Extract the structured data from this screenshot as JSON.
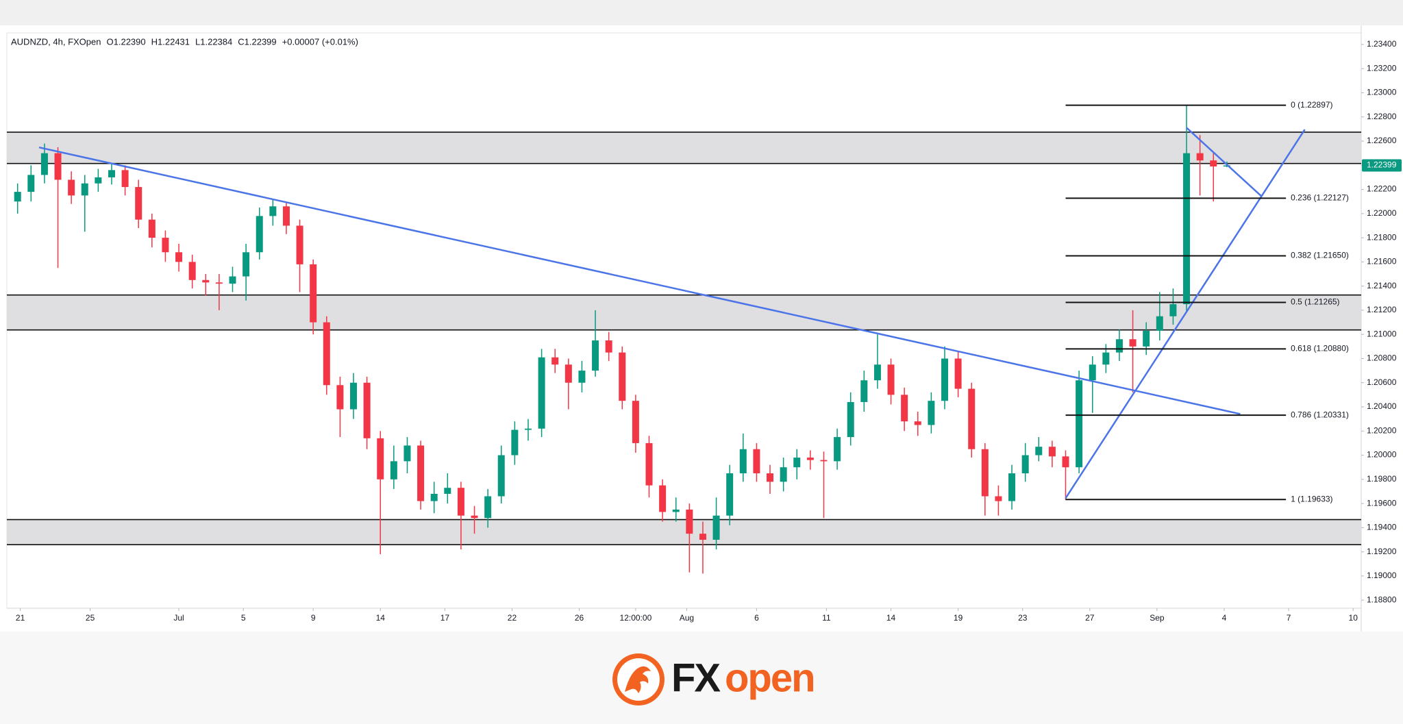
{
  "chart_data": {
    "type": "candlestick",
    "title": "AUDNZD, 4h, FXOpen",
    "ohlc_legend": [
      {
        "label": "O",
        "value": "1.22390"
      },
      {
        "label": "H",
        "value": "1.22431"
      },
      {
        "label": "L",
        "value": "1.22384"
      },
      {
        "label": "C",
        "value": "1.22399"
      }
    ],
    "change": "+0.00007 (+0.01%)",
    "up_color": "#089981",
    "down_color": "#f23645",
    "line_color": "#4a74e8",
    "zone_color": "#d9d9dc",
    "x": [
      4,
      9,
      14,
      19,
      24,
      29,
      34,
      39,
      44,
      49,
      54,
      59,
      64,
      69,
      74,
      79,
      84,
      89,
      94,
      99,
      104,
      109,
      114,
      119,
      124,
      129,
      134,
      139,
      144,
      149,
      154,
      159,
      164,
      169,
      174,
      179,
      184,
      189,
      194,
      199,
      204,
      209,
      214,
      219,
      224,
      229,
      234,
      239,
      244,
      249,
      254,
      259,
      264,
      269,
      274,
      279,
      284,
      289,
      294,
      299,
      304,
      309,
      314,
      319,
      324,
      329,
      334,
      339,
      344,
      349,
      354,
      359,
      364,
      369,
      374,
      379,
      384,
      389,
      394,
      399,
      404,
      409,
      414,
      419,
      424,
      429,
      434,
      439,
      444,
      449,
      454
    ],
    "open": [
      1.221,
      1.2218,
      1.2232,
      1.225,
      1.2228,
      1.2215,
      1.2225,
      1.223,
      1.2236,
      1.2222,
      1.2195,
      1.218,
      1.2168,
      1.216,
      1.2145,
      1.2143,
      1.2142,
      1.2148,
      1.2168,
      1.2198,
      1.2206,
      1.219,
      1.2158,
      1.211,
      1.2058,
      1.2038,
      1.206,
      1.2014,
      1.198,
      1.1995,
      1.2008,
      1.1962,
      1.1968,
      1.1973,
      1.195,
      1.1948,
      1.1966,
      1.2,
      1.2021,
      1.2022,
      1.2081,
      1.2075,
      1.206,
      1.207,
      1.2095,
      1.2085,
      1.2045,
      1.201,
      1.1975,
      1.1953,
      1.1955,
      1.1935,
      1.193,
      1.195,
      1.1985,
      1.2005,
      1.1985,
      1.1978,
      1.199,
      1.1998,
      1.1996,
      1.1995,
      1.2015,
      1.2044,
      1.2062,
      1.2075,
      1.205,
      1.2028,
      1.2025,
      1.2045,
      1.208,
      1.2055,
      1.2005,
      1.1966,
      1.1962,
      1.1985,
      1.2,
      1.2007,
      1.1999,
      1.199,
      1.2062,
      1.2075,
      1.2085,
      1.2096,
      1.209,
      1.2103,
      1.2115,
      1.2125,
      1.225,
      1.2244,
      1.2239
    ],
    "high": [
      1.2225,
      1.224,
      1.2258,
      1.2255,
      1.2235,
      1.2232,
      1.2237,
      1.2242,
      1.224,
      1.2228,
      1.22,
      1.2186,
      1.2175,
      1.2166,
      1.215,
      1.215,
      1.2156,
      1.2175,
      1.2205,
      1.2212,
      1.221,
      1.2195,
      1.2162,
      1.2115,
      1.2065,
      1.2068,
      1.2065,
      1.202,
      1.2008,
      1.2015,
      1.2012,
      1.1978,
      1.1985,
      1.1978,
      1.1958,
      1.1972,
      1.2008,
      1.2028,
      1.203,
      1.2088,
      1.2088,
      1.208,
      1.2078,
      1.212,
      1.2102,
      1.209,
      1.205,
      1.2016,
      1.198,
      1.1965,
      1.196,
      1.1945,
      1.1965,
      1.1992,
      1.2018,
      1.201,
      1.1992,
      1.1998,
      1.2005,
      1.2004,
      1.2003,
      1.2022,
      1.2052,
      1.207,
      1.21,
      1.208,
      1.2056,
      1.2036,
      1.2052,
      1.209,
      1.2086,
      1.206,
      1.201,
      1.1975,
      1.1992,
      1.201,
      1.2015,
      1.2012,
      1.2004,
      1.207,
      1.2082,
      1.2092,
      1.2104,
      1.212,
      1.211,
      1.2135,
      1.2138,
      1.22897,
      1.2265,
      1.225,
      1.22431
    ],
    "low": [
      1.22,
      1.221,
      1.2225,
      1.2155,
      1.2208,
      1.2185,
      1.2218,
      1.2224,
      1.2215,
      1.2188,
      1.2172,
      1.216,
      1.2152,
      1.2138,
      1.2132,
      1.212,
      1.2135,
      1.2128,
      1.2162,
      1.219,
      1.2183,
      1.2135,
      1.21,
      1.205,
      1.2015,
      1.203,
      1.2005,
      1.1918,
      1.1972,
      1.1985,
      1.1955,
      1.1952,
      1.196,
      1.1922,
      1.1935,
      1.194,
      1.196,
      1.1992,
      1.2012,
      1.2015,
      1.2068,
      1.2038,
      1.2052,
      1.2065,
      1.2078,
      1.2038,
      1.2002,
      1.1965,
      1.1945,
      1.1945,
      1.1903,
      1.1902,
      1.1922,
      1.1942,
      1.1978,
      1.1978,
      1.1968,
      1.197,
      1.198,
      1.1988,
      1.1948,
      1.1988,
      1.2008,
      1.2036,
      1.2055,
      1.2042,
      1.202,
      1.2016,
      1.2018,
      1.2038,
      1.2048,
      1.1998,
      1.195,
      1.195,
      1.1955,
      1.1978,
      1.1995,
      1.199,
      1.1963,
      1.1985,
      1.2035,
      1.2068,
      1.2078,
      1.2052,
      1.2083,
      1.2095,
      1.2108,
      1.2118,
      1.2215,
      1.221,
      1.22384
    ],
    "close": [
      1.2218,
      1.2232,
      1.225,
      1.2228,
      1.2215,
      1.2225,
      1.223,
      1.2236,
      1.2222,
      1.2195,
      1.218,
      1.2168,
      1.216,
      1.2145,
      1.2143,
      1.2142,
      1.2148,
      1.2168,
      1.2198,
      1.2206,
      1.219,
      1.2158,
      1.211,
      1.2058,
      1.2038,
      1.206,
      1.2014,
      1.198,
      1.1995,
      1.2008,
      1.1962,
      1.1968,
      1.1973,
      1.195,
      1.1948,
      1.1966,
      1.2,
      1.2021,
      1.2022,
      1.2081,
      1.2075,
      1.206,
      1.207,
      1.2095,
      1.2085,
      1.2045,
      1.201,
      1.1975,
      1.1953,
      1.1955,
      1.1935,
      1.193,
      1.195,
      1.1985,
      1.2005,
      1.1985,
      1.1978,
      1.199,
      1.1998,
      1.1996,
      1.1995,
      1.2015,
      1.2044,
      1.2062,
      1.2075,
      1.205,
      1.2028,
      1.2025,
      1.2045,
      1.208,
      1.2055,
      1.2005,
      1.1966,
      1.1962,
      1.1985,
      1.2,
      1.2007,
      1.1999,
      1.199,
      1.2062,
      1.2075,
      1.2085,
      1.2096,
      1.209,
      1.2103,
      1.2115,
      1.2125,
      1.225,
      1.2244,
      1.2239,
      1.22399
    ],
    "xlim": [
      0,
      504
    ],
    "xticks": [
      {
        "value": 5,
        "label": "21"
      },
      {
        "value": 31,
        "label": "25"
      },
      {
        "value": 64,
        "label": "Jul"
      },
      {
        "value": 88,
        "label": "5"
      },
      {
        "value": 114,
        "label": "9"
      },
      {
        "value": 139,
        "label": "14"
      },
      {
        "value": 163,
        "label": "17"
      },
      {
        "value": 188,
        "label": "22"
      },
      {
        "value": 213,
        "label": "26"
      },
      {
        "value": 234,
        "label": "12:00:00"
      },
      {
        "value": 253,
        "label": "Aug"
      },
      {
        "value": 279,
        "label": "6"
      },
      {
        "value": 305,
        "label": "11"
      },
      {
        "value": 329,
        "label": "14"
      },
      {
        "value": 354,
        "label": "19"
      },
      {
        "value": 378,
        "label": "23"
      },
      {
        "value": 403,
        "label": "27"
      },
      {
        "value": 428,
        "label": "Sep"
      },
      {
        "value": 453,
        "label": "4"
      },
      {
        "value": 477,
        "label": "7"
      },
      {
        "value": 501,
        "label": "10"
      }
    ],
    "ylim": [
      1.18733,
      1.23496
    ],
    "yticks": [
      {
        "value": 1.234,
        "label": "1.23400"
      },
      {
        "value": 1.232,
        "label": "1.23200"
      },
      {
        "value": 1.23,
        "label": "1.23000"
      },
      {
        "value": 1.228,
        "label": "1.22800"
      },
      {
        "value": 1.226,
        "label": "1.22600"
      },
      {
        "value": 1.224,
        "label": "1.22400"
      },
      {
        "value": 1.222,
        "label": "1.22200"
      },
      {
        "value": 1.22,
        "label": "1.22000"
      },
      {
        "value": 1.218,
        "label": "1.21800"
      },
      {
        "value": 1.216,
        "label": "1.21600"
      },
      {
        "value": 1.214,
        "label": "1.21400"
      },
      {
        "value": 1.212,
        "label": "1.21200"
      },
      {
        "value": 1.21,
        "label": "1.21000"
      },
      {
        "value": 1.208,
        "label": "1.20800"
      },
      {
        "value": 1.206,
        "label": "1.20600"
      },
      {
        "value": 1.204,
        "label": "1.20400"
      },
      {
        "value": 1.202,
        "label": "1.20200"
      },
      {
        "value": 1.2,
        "label": "1.20000"
      },
      {
        "value": 1.198,
        "label": "1.19800"
      },
      {
        "value": 1.196,
        "label": "1.19600"
      },
      {
        "value": 1.194,
        "label": "1.19400"
      },
      {
        "value": 1.192,
        "label": "1.19200"
      },
      {
        "value": 1.19,
        "label": "1.19000"
      },
      {
        "value": 1.188,
        "label": "1.18800"
      }
    ],
    "grid": false,
    "zones": [
      [
        1.22674,
        1.22415
      ],
      [
        1.21326,
        1.21037
      ],
      [
        1.19467,
        1.19259
      ]
    ],
    "trendlines": [
      {
        "x": [
          12,
          459
        ],
        "y": [
          1.22548,
          1.20341
        ]
      },
      {
        "x": [
          394,
          483
        ],
        "y": [
          1.19644,
          1.22696
        ]
      },
      {
        "x": [
          439,
          467
        ],
        "y": [
          1.22711,
          1.22141
        ]
      }
    ],
    "fib": {
      "x": [
        394,
        476
      ],
      "levels": [
        {
          "value": 1.22897,
          "label": "0 (1.22897)"
        },
        {
          "value": 1.22127,
          "label": "0.236 (1.22127)"
        },
        {
          "value": 1.2165,
          "label": "0.382 (1.21650)"
        },
        {
          "value": 1.21265,
          "label": "0.5 (1.21265)"
        },
        {
          "value": 1.2088,
          "label": "0.618 (1.20880)"
        },
        {
          "value": 1.20331,
          "label": "0.786 (1.20331)"
        },
        {
          "value": 1.19633,
          "label": "1 (1.19633)"
        }
      ]
    },
    "last_price": {
      "value": 1.22399,
      "label": "1.22399"
    }
  },
  "brand": {
    "prefix": "FX",
    "suffix": "open"
  }
}
